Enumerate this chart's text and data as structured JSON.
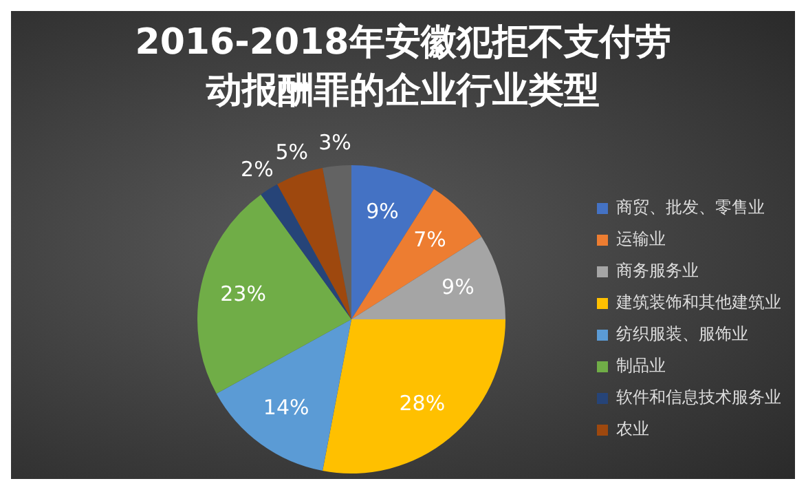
{
  "chart_data": {
    "type": "pie",
    "title": "2016-2018年安徽犯拒不支付劳动报酬罪的企业行业类型",
    "categories": [
      "商贸、批发、零售业",
      "运输业",
      "商务服务业",
      "建筑装饰和其他建筑业",
      "纺织服装、服饰业",
      "制品业",
      "软件和信息技术服务业",
      "农业",
      null
    ],
    "values": [
      9,
      7,
      9,
      28,
      14,
      23,
      2,
      5,
      3
    ],
    "colors": [
      "#4472c4",
      "#ed7d31",
      "#a5a5a5",
      "#ffc000",
      "#5b9bd5",
      "#70ad47",
      "#264478",
      "#9e480e",
      "#636363"
    ],
    "value_labels": [
      "9%",
      "7%",
      "9%",
      "28%",
      "14%",
      "23%",
      "2%",
      "5%",
      "3%"
    ],
    "legend": "right"
  }
}
